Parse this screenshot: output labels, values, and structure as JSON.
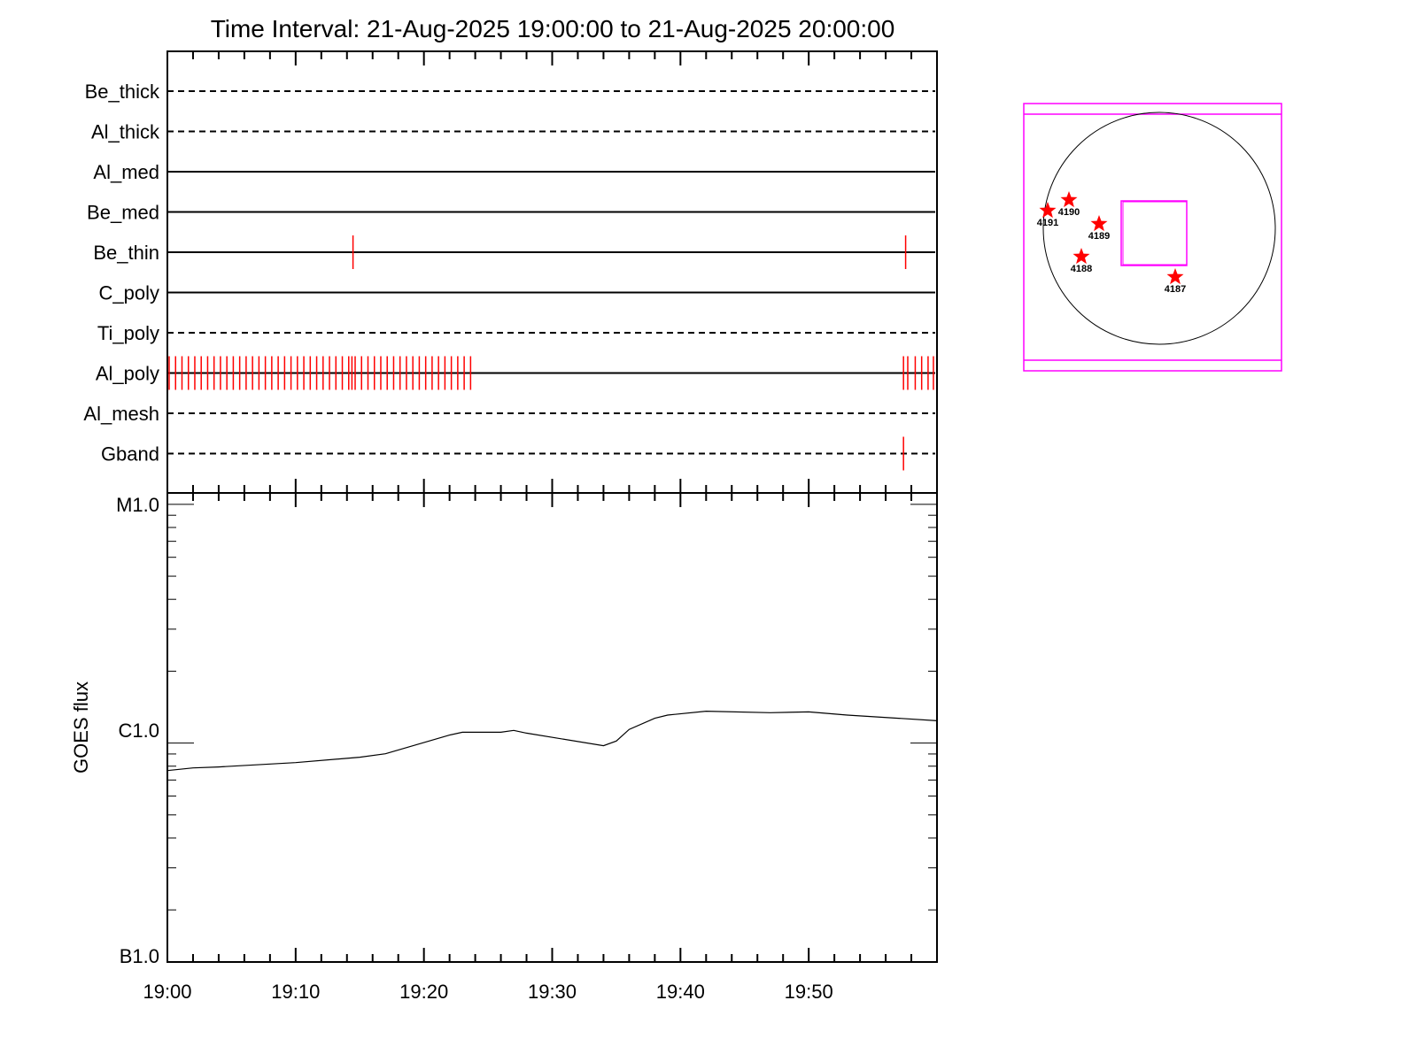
{
  "chart_data": [
    {
      "type": "timeline",
      "title": "Time Interval: 21-Aug-2025 19:00:00 to 21-Aug-2025 20:00:00",
      "xlim": [
        "19:00",
        "20:00"
      ],
      "rows": [
        {
          "name": "Be_thick",
          "style": "dashed",
          "events": []
        },
        {
          "name": "Al_thick",
          "style": "dashed",
          "events": []
        },
        {
          "name": "Al_med",
          "style": "solid",
          "events": []
        },
        {
          "name": "Be_med",
          "style": "solid",
          "events": []
        },
        {
          "name": "Be_thin",
          "style": "solid",
          "events": [
            "19:14:20",
            "19:57:25"
          ]
        },
        {
          "name": "C_poly",
          "style": "solid",
          "events": []
        },
        {
          "name": "Ti_poly",
          "style": "dashed",
          "events": []
        },
        {
          "name": "Al_poly",
          "style": "solid",
          "events_every_30s": [
            "19:00:00",
            "19:23:30"
          ],
          "events": [
            "19:14:15",
            "19:57:15",
            "19:57:35",
            "19:58:10",
            "19:58:40",
            "19:59:10",
            "19:59:35"
          ]
        },
        {
          "name": "Al_mesh",
          "style": "dashed",
          "events": []
        },
        {
          "name": "Gband",
          "style": "dashed",
          "events": [
            "19:57:15"
          ]
        }
      ],
      "event_color": "#ff0000"
    },
    {
      "type": "line",
      "ylabel": "GOES flux",
      "yscale": "log",
      "ylim": [
        1.21e-07,
        1.116e-05
      ],
      "y_tick_labels": [
        {
          "label": "M1.0",
          "value": 1e-05
        },
        {
          "label": "C1.0",
          "value": 1e-06
        },
        {
          "label": "B1.0",
          "value": 1e-07
        }
      ],
      "x_tick_labels": [
        "19:00",
        "19:10",
        "19:20",
        "19:30",
        "19:40",
        "19:50"
      ],
      "xlim": [
        "19:00",
        "20:00"
      ],
      "series": [
        {
          "x": [
            "19:00",
            "19:02",
            "19:04",
            "19:10",
            "19:15",
            "19:17",
            "19:22",
            "19:23",
            "19:26",
            "19:27",
            "19:28",
            "19:34",
            "19:35",
            "19:36",
            "19:38",
            "19:39",
            "19:42",
            "19:47",
            "19:50",
            "19:53",
            "19:57",
            "20:00"
          ],
          "y": [
            7.67e-07,
            7.87e-07,
            7.94e-07,
            8.28e-07,
            8.72e-07,
            9.02e-07,
            1.08e-06,
            1.11e-06,
            1.11e-06,
            1.13e-06,
            1.1e-06,
            9.75e-07,
            1.02e-06,
            1.14e-06,
            1.27e-06,
            1.31e-06,
            1.36e-06,
            1.34e-06,
            1.35e-06,
            1.31e-06,
            1.27e-06,
            1.24e-06
          ]
        }
      ]
    },
    {
      "type": "scatter",
      "description_labels": [
        "4191",
        "4190",
        "4189",
        "4188",
        "4187"
      ],
      "points": [
        {
          "label": "4191"
        },
        {
          "label": "4190"
        },
        {
          "label": "4189"
        },
        {
          "label": "4188"
        },
        {
          "label": "4187"
        }
      ],
      "marker_color": "#ff0000",
      "frame_color": "#ff00ff"
    }
  ]
}
